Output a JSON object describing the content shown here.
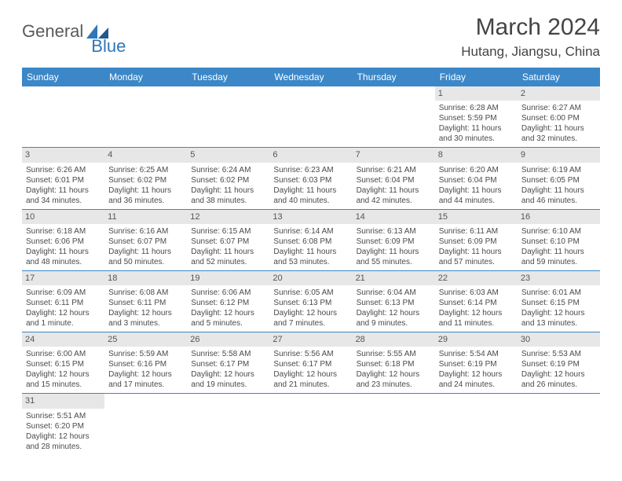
{
  "logo": {
    "part1": "General",
    "part2": "Blue"
  },
  "title": "March 2024",
  "location": "Hutang, Jiangsu, China",
  "colors": {
    "header_bg": "#3b87c8",
    "header_fg": "#ffffff",
    "daynum_bg": "#e7e7e7",
    "row_border": "#3b87c8",
    "logo_blue": "#2e77b8",
    "text": "#4a4a4a"
  },
  "dayNames": [
    "Sunday",
    "Monday",
    "Tuesday",
    "Wednesday",
    "Thursday",
    "Friday",
    "Saturday"
  ],
  "weeks": [
    [
      {
        "day": "",
        "lines": []
      },
      {
        "day": "",
        "lines": []
      },
      {
        "day": "",
        "lines": []
      },
      {
        "day": "",
        "lines": []
      },
      {
        "day": "",
        "lines": []
      },
      {
        "day": "1",
        "lines": [
          "Sunrise: 6:28 AM",
          "Sunset: 5:59 PM",
          "Daylight: 11 hours",
          "and 30 minutes."
        ]
      },
      {
        "day": "2",
        "lines": [
          "Sunrise: 6:27 AM",
          "Sunset: 6:00 PM",
          "Daylight: 11 hours",
          "and 32 minutes."
        ]
      }
    ],
    [
      {
        "day": "3",
        "lines": [
          "Sunrise: 6:26 AM",
          "Sunset: 6:01 PM",
          "Daylight: 11 hours",
          "and 34 minutes."
        ]
      },
      {
        "day": "4",
        "lines": [
          "Sunrise: 6:25 AM",
          "Sunset: 6:02 PM",
          "Daylight: 11 hours",
          "and 36 minutes."
        ]
      },
      {
        "day": "5",
        "lines": [
          "Sunrise: 6:24 AM",
          "Sunset: 6:02 PM",
          "Daylight: 11 hours",
          "and 38 minutes."
        ]
      },
      {
        "day": "6",
        "lines": [
          "Sunrise: 6:23 AM",
          "Sunset: 6:03 PM",
          "Daylight: 11 hours",
          "and 40 minutes."
        ]
      },
      {
        "day": "7",
        "lines": [
          "Sunrise: 6:21 AM",
          "Sunset: 6:04 PM",
          "Daylight: 11 hours",
          "and 42 minutes."
        ]
      },
      {
        "day": "8",
        "lines": [
          "Sunrise: 6:20 AM",
          "Sunset: 6:04 PM",
          "Daylight: 11 hours",
          "and 44 minutes."
        ]
      },
      {
        "day": "9",
        "lines": [
          "Sunrise: 6:19 AM",
          "Sunset: 6:05 PM",
          "Daylight: 11 hours",
          "and 46 minutes."
        ]
      }
    ],
    [
      {
        "day": "10",
        "lines": [
          "Sunrise: 6:18 AM",
          "Sunset: 6:06 PM",
          "Daylight: 11 hours",
          "and 48 minutes."
        ]
      },
      {
        "day": "11",
        "lines": [
          "Sunrise: 6:16 AM",
          "Sunset: 6:07 PM",
          "Daylight: 11 hours",
          "and 50 minutes."
        ]
      },
      {
        "day": "12",
        "lines": [
          "Sunrise: 6:15 AM",
          "Sunset: 6:07 PM",
          "Daylight: 11 hours",
          "and 52 minutes."
        ]
      },
      {
        "day": "13",
        "lines": [
          "Sunrise: 6:14 AM",
          "Sunset: 6:08 PM",
          "Daylight: 11 hours",
          "and 53 minutes."
        ]
      },
      {
        "day": "14",
        "lines": [
          "Sunrise: 6:13 AM",
          "Sunset: 6:09 PM",
          "Daylight: 11 hours",
          "and 55 minutes."
        ]
      },
      {
        "day": "15",
        "lines": [
          "Sunrise: 6:11 AM",
          "Sunset: 6:09 PM",
          "Daylight: 11 hours",
          "and 57 minutes."
        ]
      },
      {
        "day": "16",
        "lines": [
          "Sunrise: 6:10 AM",
          "Sunset: 6:10 PM",
          "Daylight: 11 hours",
          "and 59 minutes."
        ]
      }
    ],
    [
      {
        "day": "17",
        "lines": [
          "Sunrise: 6:09 AM",
          "Sunset: 6:11 PM",
          "Daylight: 12 hours",
          "and 1 minute."
        ]
      },
      {
        "day": "18",
        "lines": [
          "Sunrise: 6:08 AM",
          "Sunset: 6:11 PM",
          "Daylight: 12 hours",
          "and 3 minutes."
        ]
      },
      {
        "day": "19",
        "lines": [
          "Sunrise: 6:06 AM",
          "Sunset: 6:12 PM",
          "Daylight: 12 hours",
          "and 5 minutes."
        ]
      },
      {
        "day": "20",
        "lines": [
          "Sunrise: 6:05 AM",
          "Sunset: 6:13 PM",
          "Daylight: 12 hours",
          "and 7 minutes."
        ]
      },
      {
        "day": "21",
        "lines": [
          "Sunrise: 6:04 AM",
          "Sunset: 6:13 PM",
          "Daylight: 12 hours",
          "and 9 minutes."
        ]
      },
      {
        "day": "22",
        "lines": [
          "Sunrise: 6:03 AM",
          "Sunset: 6:14 PM",
          "Daylight: 12 hours",
          "and 11 minutes."
        ]
      },
      {
        "day": "23",
        "lines": [
          "Sunrise: 6:01 AM",
          "Sunset: 6:15 PM",
          "Daylight: 12 hours",
          "and 13 minutes."
        ]
      }
    ],
    [
      {
        "day": "24",
        "lines": [
          "Sunrise: 6:00 AM",
          "Sunset: 6:15 PM",
          "Daylight: 12 hours",
          "and 15 minutes."
        ]
      },
      {
        "day": "25",
        "lines": [
          "Sunrise: 5:59 AM",
          "Sunset: 6:16 PM",
          "Daylight: 12 hours",
          "and 17 minutes."
        ]
      },
      {
        "day": "26",
        "lines": [
          "Sunrise: 5:58 AM",
          "Sunset: 6:17 PM",
          "Daylight: 12 hours",
          "and 19 minutes."
        ]
      },
      {
        "day": "27",
        "lines": [
          "Sunrise: 5:56 AM",
          "Sunset: 6:17 PM",
          "Daylight: 12 hours",
          "and 21 minutes."
        ]
      },
      {
        "day": "28",
        "lines": [
          "Sunrise: 5:55 AM",
          "Sunset: 6:18 PM",
          "Daylight: 12 hours",
          "and 23 minutes."
        ]
      },
      {
        "day": "29",
        "lines": [
          "Sunrise: 5:54 AM",
          "Sunset: 6:19 PM",
          "Daylight: 12 hours",
          "and 24 minutes."
        ]
      },
      {
        "day": "30",
        "lines": [
          "Sunrise: 5:53 AM",
          "Sunset: 6:19 PM",
          "Daylight: 12 hours",
          "and 26 minutes."
        ]
      }
    ],
    [
      {
        "day": "31",
        "lines": [
          "Sunrise: 5:51 AM",
          "Sunset: 6:20 PM",
          "Daylight: 12 hours",
          "and 28 minutes."
        ]
      },
      {
        "day": "",
        "lines": []
      },
      {
        "day": "",
        "lines": []
      },
      {
        "day": "",
        "lines": []
      },
      {
        "day": "",
        "lines": []
      },
      {
        "day": "",
        "lines": []
      },
      {
        "day": "",
        "lines": []
      }
    ]
  ]
}
